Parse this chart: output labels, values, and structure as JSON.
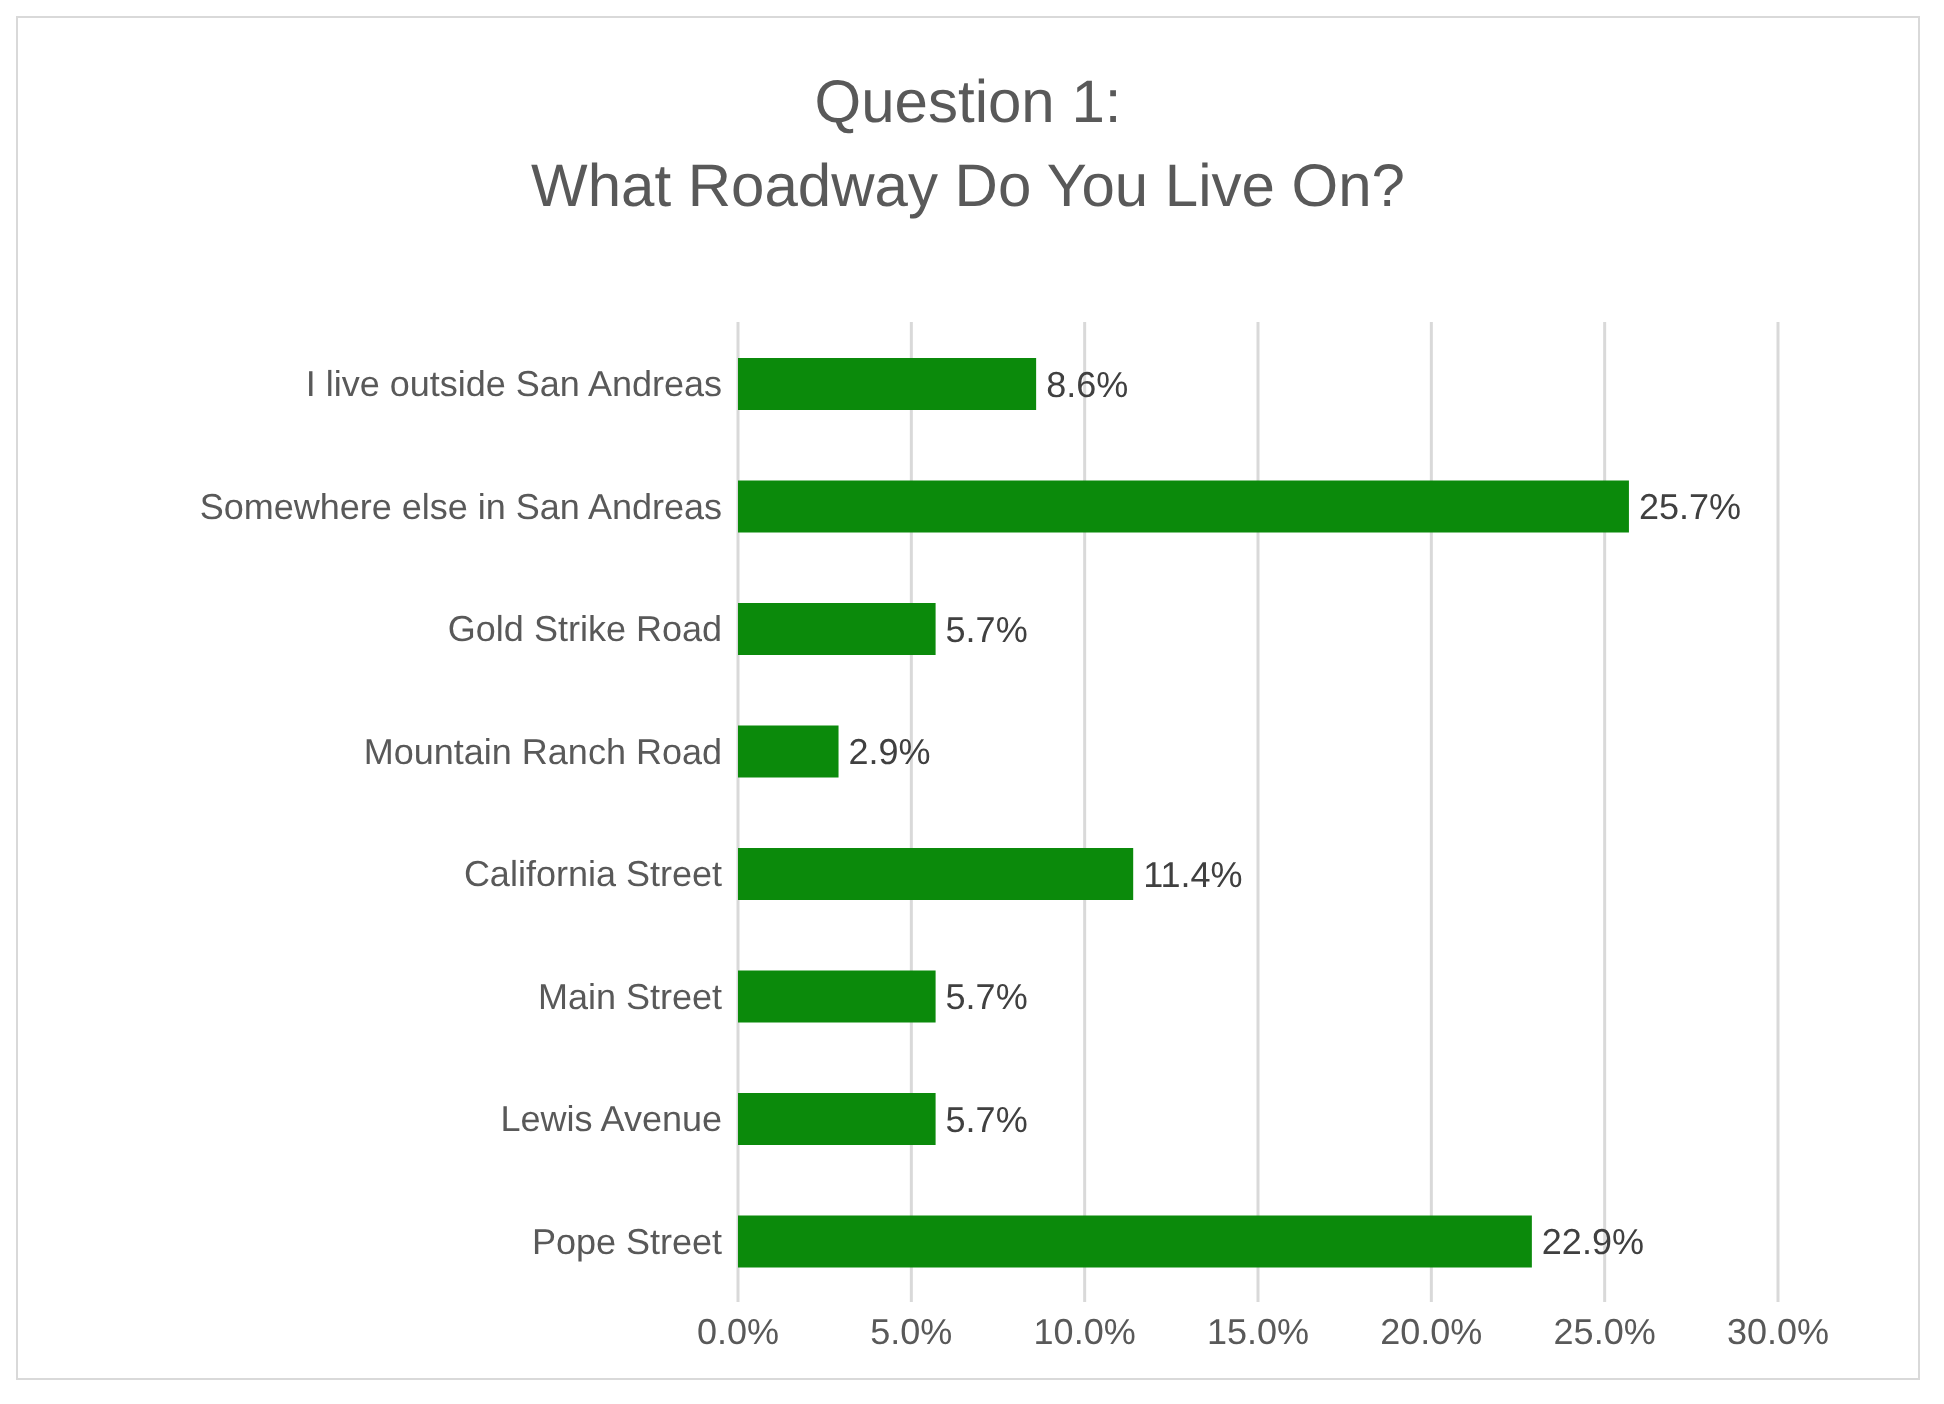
{
  "chart_data": {
    "type": "bar",
    "orientation": "horizontal",
    "title": "Question 1:\nWhat Roadway Do You Live On?",
    "categories": [
      "I live outside San Andreas",
      "Somewhere else in San Andreas",
      "Gold Strike Road",
      "Mountain Ranch Road",
      "California Street",
      "Main Street",
      "Lewis Avenue",
      "Pope Street"
    ],
    "values": [
      8.6,
      25.7,
      5.7,
      2.9,
      11.4,
      5.7,
      5.7,
      22.9
    ],
    "value_labels": [
      "8.6%",
      "25.7%",
      "5.7%",
      "2.9%",
      "11.4%",
      "5.7%",
      "5.7%",
      "22.9%"
    ],
    "color": "#0b8a0b",
    "xlim": [
      0,
      30
    ],
    "xticks": [
      {
        "value": 0,
        "label": "0.0%"
      },
      {
        "value": 5,
        "label": "5.0%"
      },
      {
        "value": 10,
        "label": "10.0%"
      },
      {
        "value": 15,
        "label": "15.0%"
      },
      {
        "value": 20,
        "label": "20.0%"
      },
      {
        "value": 25,
        "label": "25.0%"
      },
      {
        "value": 30,
        "label": "30.0%"
      }
    ],
    "grid": "x",
    "legend": false
  }
}
